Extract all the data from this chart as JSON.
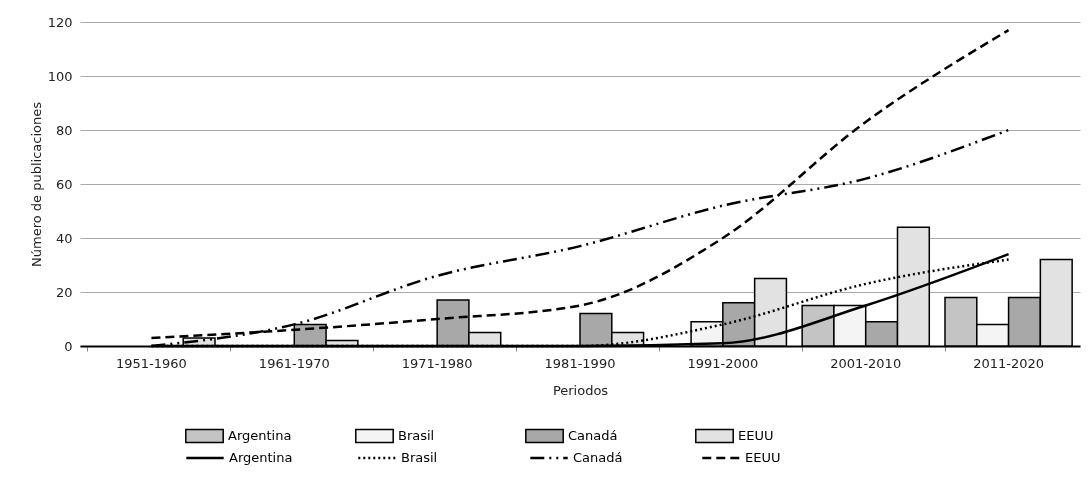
{
  "chart_data": {
    "type": "bar",
    "xlabel": "Periodos",
    "ylabel": "Número de publicaciones",
    "categories": [
      "1951-1960",
      "1961-1970",
      "1971-1980",
      "1981-1990",
      "1991-2000",
      "2001-2010",
      "2011-2020"
    ],
    "series": [
      {
        "name": "Argentina",
        "type": "bar",
        "color": "#c4c4c4",
        "values": [
          0,
          0,
          0,
          0,
          null,
          15,
          18
        ]
      },
      {
        "name": "Brasil",
        "type": "bar",
        "color": "#f4f4f4",
        "values": [
          0,
          0,
          0,
          0,
          9,
          15,
          8
        ]
      },
      {
        "name": "Canadá",
        "type": "bar",
        "color": "#a8a8a8",
        "values": [
          0,
          8,
          17,
          12,
          16,
          9,
          18
        ]
      },
      {
        "name": "EEUU",
        "type": "bar",
        "color": "#e2e2e2",
        "values": [
          3,
          2,
          5,
          5,
          25,
          44,
          32
        ]
      },
      {
        "name": "Argentina",
        "type": "line",
        "color": "#000000",
        "line_style": "solid",
        "values": [
          0,
          0,
          0,
          0,
          1,
          15,
          34
        ]
      },
      {
        "name": "Brasil",
        "type": "line",
        "color": "#000000",
        "line_style": "dotted",
        "values": [
          0,
          0,
          0,
          0,
          8,
          23,
          32
        ]
      },
      {
        "name": "Canadá",
        "type": "line",
        "color": "#000000",
        "line_style": "dashdot",
        "values": [
          0,
          8,
          26,
          37,
          52,
          62,
          80
        ]
      },
      {
        "name": "EEUU",
        "type": "line",
        "color": "#000000",
        "line_style": "dashed",
        "values": [
          3,
          6,
          10,
          15,
          40,
          83,
          117
        ]
      }
    ],
    "ylim": [
      0,
      120
    ],
    "yticks": [
      0,
      20,
      40,
      60,
      80,
      100,
      120
    ],
    "grid": "y",
    "legend": "bottom"
  }
}
